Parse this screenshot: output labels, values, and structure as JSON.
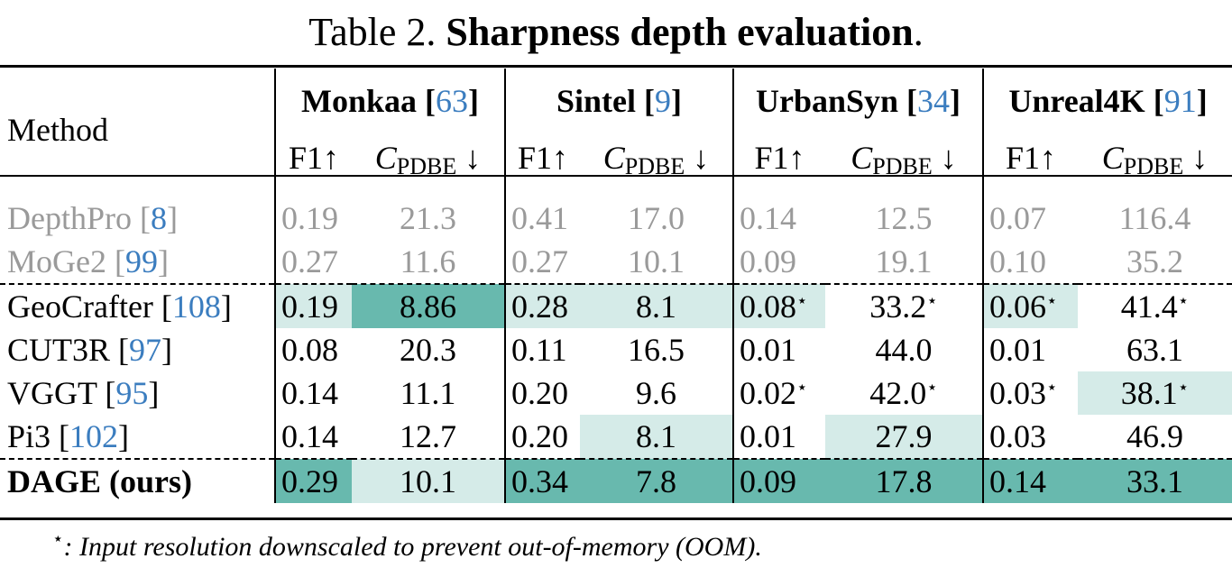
{
  "caption": {
    "prefix": "Table 2.",
    "title": "Sharpness depth evaluation",
    "suffix": "."
  },
  "header": {
    "method": "Method",
    "datasets": [
      {
        "name": "Monkaa",
        "cite": "63"
      },
      {
        "name": "Sintel",
        "cite": "9"
      },
      {
        "name": "UrbanSyn",
        "cite": "34"
      },
      {
        "name": "Unreal4K",
        "cite": "91"
      }
    ],
    "metric_f1": "F1↑",
    "metric_c": "C",
    "metric_c_sub": "PDBE",
    "metric_c_arrow": "↓"
  },
  "colors": {
    "highlight_best": "#68b9ae",
    "highlight_second": "#d5ebe8",
    "citation": "#3b7dbf",
    "gray": "#9a9a9a"
  },
  "rows": [
    {
      "method": "DepthPro",
      "cite": "8",
      "gray": true,
      "cells": [
        {
          "v": "0.19",
          "hl": 0
        },
        {
          "v": "21.3",
          "hl": 0
        },
        {
          "v": "0.41",
          "hl": 0
        },
        {
          "v": "17.0",
          "hl": 0
        },
        {
          "v": "0.14",
          "hl": 0
        },
        {
          "v": "12.5",
          "hl": 0
        },
        {
          "v": "0.07",
          "hl": 0
        },
        {
          "v": "116.4",
          "hl": 0
        }
      ]
    },
    {
      "method": "MoGe2",
      "cite": "99",
      "gray": true,
      "cells": [
        {
          "v": "0.27",
          "hl": 0
        },
        {
          "v": "11.6",
          "hl": 0
        },
        {
          "v": "0.27",
          "hl": 0
        },
        {
          "v": "10.1",
          "hl": 0
        },
        {
          "v": "0.09",
          "hl": 0
        },
        {
          "v": "19.1",
          "hl": 0
        },
        {
          "v": "0.10",
          "hl": 0
        },
        {
          "v": "35.2",
          "hl": 0
        }
      ]
    },
    {
      "method": "GeoCrafter",
      "cite": "108",
      "dash": true,
      "cells": [
        {
          "v": "0.19",
          "hl": 1
        },
        {
          "v": "8.86",
          "hl": 2
        },
        {
          "v": "0.28",
          "hl": 1
        },
        {
          "v": "8.1",
          "hl": 1
        },
        {
          "v": "0.08",
          "hl": 1,
          "star": true
        },
        {
          "v": "33.2",
          "hl": 0,
          "star": true
        },
        {
          "v": "0.06",
          "hl": 1,
          "star": true
        },
        {
          "v": "41.4",
          "hl": 0,
          "star": true
        }
      ]
    },
    {
      "method": "CUT3R",
      "cite": "97",
      "cells": [
        {
          "v": "0.08",
          "hl": 0
        },
        {
          "v": "20.3",
          "hl": 0
        },
        {
          "v": "0.11",
          "hl": 0
        },
        {
          "v": "16.5",
          "hl": 0
        },
        {
          "v": "0.01",
          "hl": 0
        },
        {
          "v": "44.0",
          "hl": 0
        },
        {
          "v": "0.01",
          "hl": 0
        },
        {
          "v": "63.1",
          "hl": 0
        }
      ]
    },
    {
      "method": "VGGT",
      "cite": "95",
      "cells": [
        {
          "v": "0.14",
          "hl": 0
        },
        {
          "v": "11.1",
          "hl": 0
        },
        {
          "v": "0.20",
          "hl": 0
        },
        {
          "v": "9.6",
          "hl": 0
        },
        {
          "v": "0.02",
          "hl": 0,
          "star": true
        },
        {
          "v": "42.0",
          "hl": 0,
          "star": true
        },
        {
          "v": "0.03",
          "hl": 0,
          "star": true
        },
        {
          "v": "38.1",
          "hl": 1,
          "star": true
        }
      ]
    },
    {
      "method": "Pi3",
      "cite": "102",
      "cells": [
        {
          "v": "0.14",
          "hl": 0
        },
        {
          "v": "12.7",
          "hl": 0
        },
        {
          "v": "0.20",
          "hl": 0
        },
        {
          "v": "8.1",
          "hl": 1
        },
        {
          "v": "0.01",
          "hl": 0
        },
        {
          "v": "27.9",
          "hl": 1
        },
        {
          "v": "0.03",
          "hl": 0
        },
        {
          "v": "46.9",
          "hl": 0
        }
      ]
    },
    {
      "method": "DAGE (ours)",
      "bold": true,
      "dash": true,
      "cells": [
        {
          "v": "0.29",
          "hl": 2
        },
        {
          "v": "10.1",
          "hl": 1
        },
        {
          "v": "0.34",
          "hl": 2
        },
        {
          "v": "7.8",
          "hl": 2
        },
        {
          "v": "0.09",
          "hl": 2
        },
        {
          "v": "17.8",
          "hl": 2
        },
        {
          "v": "0.14",
          "hl": 2
        },
        {
          "v": "33.1",
          "hl": 2
        }
      ]
    }
  ],
  "footnote": {
    "star": "⋆",
    "text": ": Input resolution downscaled to prevent out-of-memory (OOM)."
  }
}
